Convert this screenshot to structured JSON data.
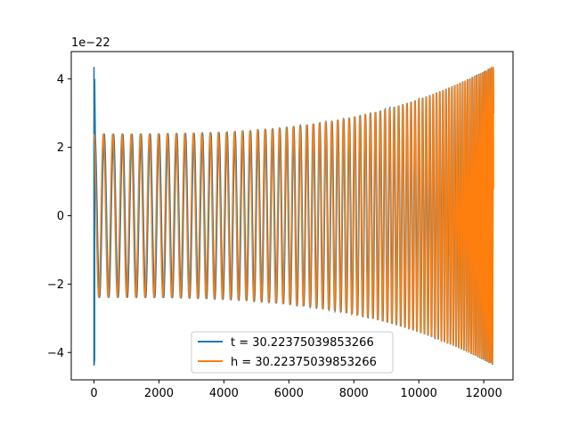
{
  "chart_data": {
    "type": "line",
    "title": "",
    "xlabel": "",
    "ylabel": "",
    "y_offset_text": "1e−22",
    "y_scale": 1e-22,
    "xlim": [
      -700,
      12900
    ],
    "ylim": [
      -4.8e-22,
      4.8e-22
    ],
    "x_ticks": [
      0,
      2000,
      4000,
      6000,
      8000,
      10000,
      12000
    ],
    "x_tick_labels": [
      "0",
      "2000",
      "4000",
      "6000",
      "8000",
      "10000",
      "12000"
    ],
    "y_ticks": [
      -4e-22,
      -2e-22,
      0,
      2e-22,
      4e-22
    ],
    "y_tick_labels": [
      "−4",
      "−2",
      "0",
      "2",
      "4"
    ],
    "grid": false,
    "legend_position": "lower-center",
    "series": [
      {
        "name": "t = 30.22375039853266",
        "color": "#1f77b4",
        "description_points": {
          "x": [
            0,
            12300
          ],
          "amplitude_start": 4.35e-22,
          "amplitude_end": 4.38e-22
        }
      },
      {
        "name": "h = 30.22375039853266",
        "color": "#ff7f0e",
        "description_points": {
          "x": [
            0,
            12300
          ],
          "amplitude_start": 2.38e-22,
          "amplitude_end": 4.38e-22
        }
      }
    ]
  }
}
